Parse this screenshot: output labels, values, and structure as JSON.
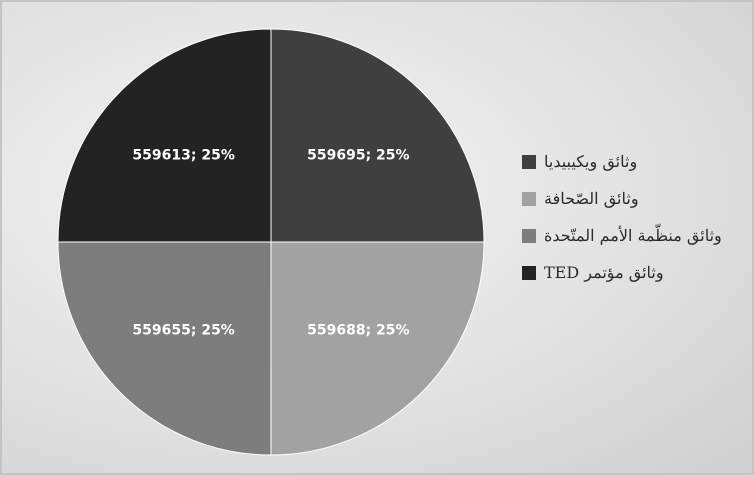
{
  "chart_data": {
    "type": "pie",
    "categories": [
      "وثائق ويكيبيديا",
      "وثائق الصّحافة",
      "وثائق منظّمة الأمم المتّحدة",
      "وثائق مؤتمر TED"
    ],
    "values": [
      559695,
      559688,
      559655,
      559613
    ],
    "percent_labels": [
      "25%",
      "25%",
      "25%",
      "25%"
    ],
    "data_labels": [
      "559695; 25%",
      "559688; 25%",
      "559655; 25%",
      "559613; 25%"
    ],
    "colors": [
      "#3f3f3f",
      "#a2a2a2",
      "#7d7d7d",
      "#232323"
    ],
    "legend_position": "right",
    "title": ""
  }
}
